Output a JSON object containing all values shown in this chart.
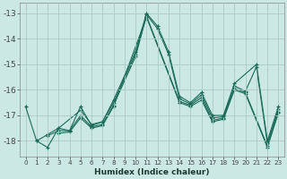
{
  "xlabel": "Humidex (Indice chaleur)",
  "background_color": "#cce8e4",
  "line_color": "#1a6b5a",
  "grid_color": "#aacbc6",
  "xlim": [
    -0.5,
    23.5
  ],
  "ylim": [
    -18.6,
    -12.6
  ],
  "yticks": [
    -18,
    -17,
    -16,
    -15,
    -14,
    -13
  ],
  "xticks": [
    0,
    1,
    2,
    3,
    4,
    5,
    6,
    7,
    8,
    9,
    10,
    11,
    12,
    13,
    14,
    15,
    16,
    17,
    18,
    19,
    20,
    21,
    22,
    23
  ],
  "series": [
    [
      -16.65,
      -18.0,
      -18.25,
      -17.5,
      -17.6,
      -16.65,
      -17.4,
      -17.25,
      -16.4,
      null,
      -14.5,
      -13.0,
      -13.5,
      -14.5,
      -16.25,
      -16.5,
      -16.1,
      -17.0,
      -17.0,
      -15.75,
      null,
      -15.0,
      -18.0,
      -16.65
    ],
    [
      null,
      -18.0,
      -17.75,
      -17.5,
      null,
      -16.8,
      -17.35,
      -17.25,
      -16.5,
      null,
      -14.6,
      -13.05,
      -13.6,
      -14.6,
      -16.35,
      -16.55,
      -16.2,
      -17.1,
      -17.05,
      -15.85,
      -16.05,
      -15.1,
      -18.1,
      -16.75
    ],
    [
      null,
      null,
      -17.8,
      -17.6,
      -17.6,
      -17.0,
      -17.45,
      -17.35,
      -16.6,
      null,
      -14.7,
      -13.1,
      null,
      null,
      -16.45,
      -16.6,
      -16.3,
      -17.2,
      -17.1,
      -15.95,
      -16.1,
      null,
      -18.2,
      -16.85
    ],
    [
      null,
      null,
      null,
      -17.7,
      -17.65,
      -17.1,
      -17.5,
      -17.4,
      -16.65,
      null,
      null,
      -13.15,
      null,
      null,
      -16.5,
      -16.65,
      -16.4,
      -17.25,
      -17.15,
      -16.0,
      -16.15,
      null,
      -18.25,
      -16.9
    ]
  ]
}
